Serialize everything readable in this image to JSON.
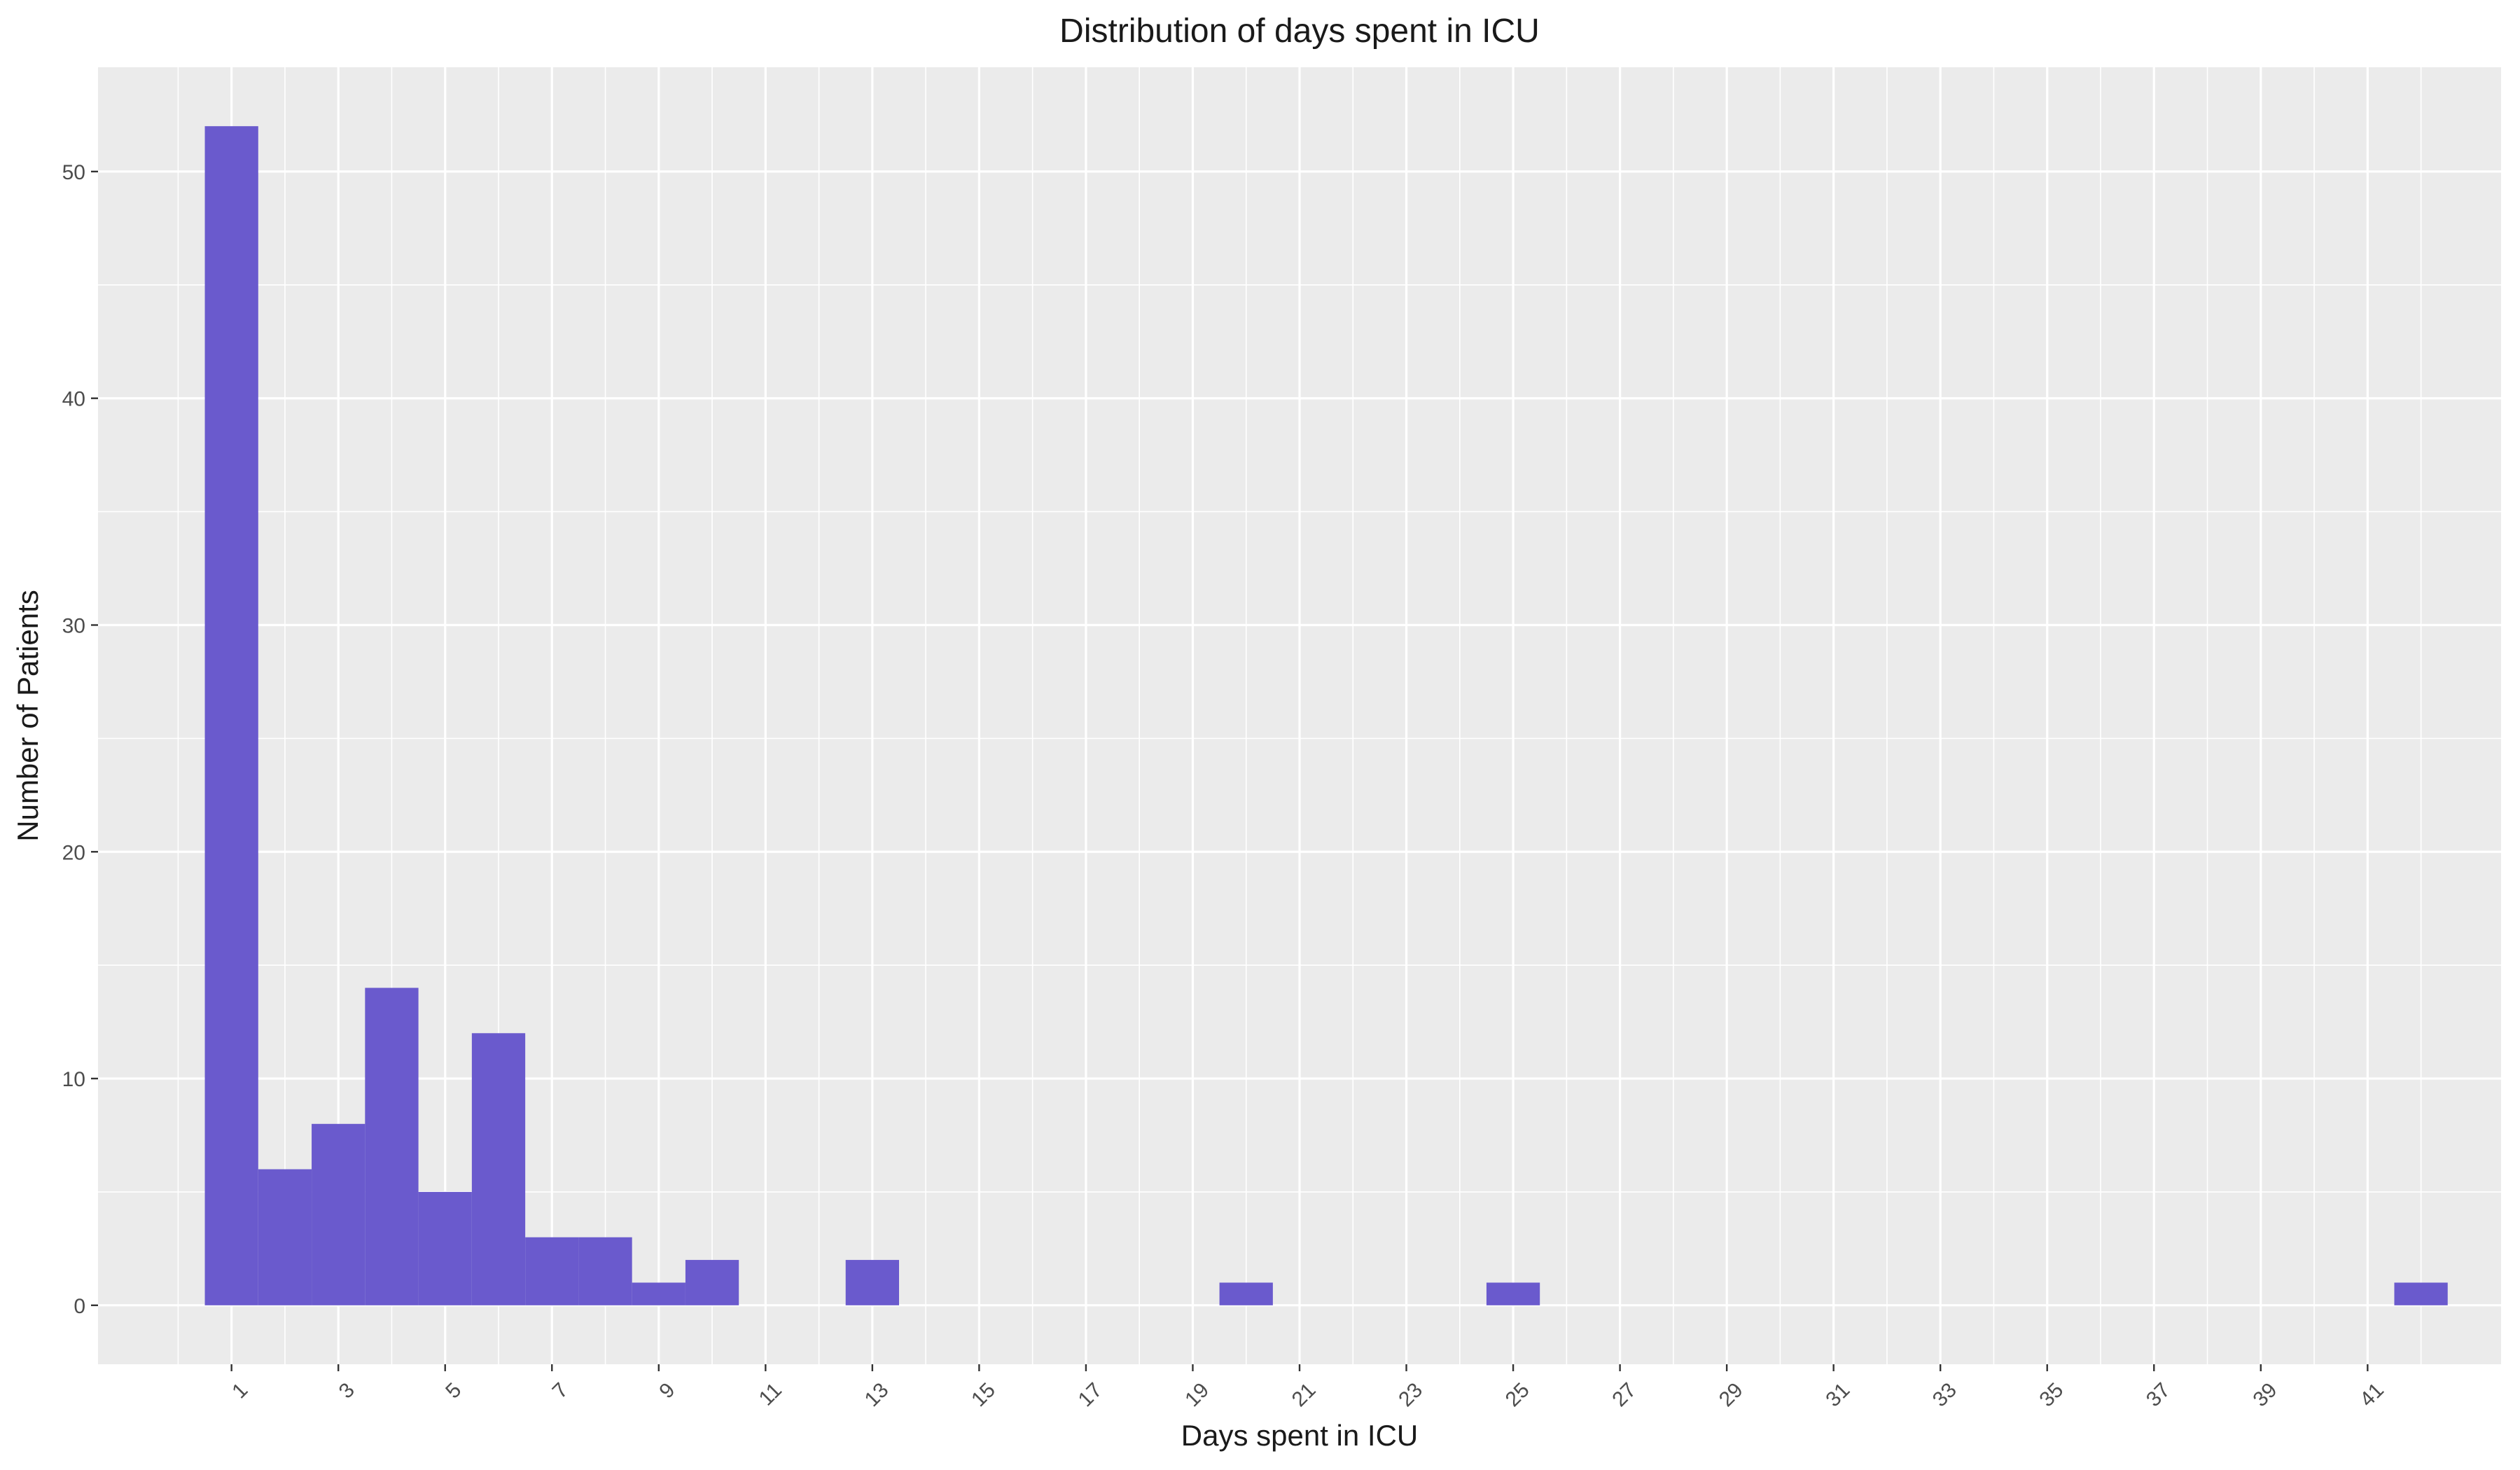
{
  "chart_data": {
    "type": "bar",
    "title": "Distribution of days spent in ICU",
    "xlabel": "Days spent in ICU",
    "ylabel": "Number of Patients",
    "categories": [
      1,
      2,
      3,
      4,
      5,
      6,
      7,
      8,
      9,
      10,
      11,
      12,
      13,
      14,
      15,
      16,
      17,
      18,
      19,
      20,
      21,
      22,
      23,
      24,
      25,
      26,
      27,
      28,
      29,
      30,
      31,
      32,
      33,
      34,
      35,
      36,
      37,
      38,
      39,
      40,
      41,
      42
    ],
    "values": [
      52,
      6,
      8,
      14,
      5,
      12,
      3,
      3,
      1,
      2,
      0,
      0,
      2,
      0,
      0,
      0,
      0,
      0,
      0,
      1,
      0,
      0,
      0,
      0,
      1,
      0,
      0,
      0,
      0,
      0,
      0,
      0,
      0,
      0,
      0,
      0,
      0,
      0,
      0,
      0,
      0,
      1
    ],
    "x_ticks": [
      1,
      3,
      5,
      7,
      9,
      11,
      13,
      15,
      17,
      19,
      21,
      23,
      25,
      27,
      29,
      31,
      33,
      35,
      37,
      39,
      41
    ],
    "y_ticks": [
      0,
      10,
      20,
      30,
      40,
      50
    ],
    "xlim": [
      -1.5,
      43.5
    ],
    "ylim": [
      -2.6,
      54.6
    ],
    "bar_color": "#6A5ACD",
    "panel_color": "#EBEBEB",
    "grid": true,
    "legend": "none"
  }
}
